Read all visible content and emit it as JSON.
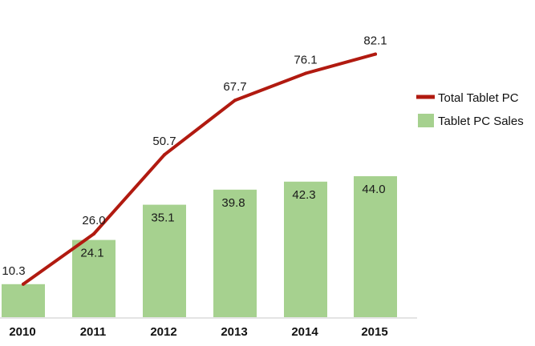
{
  "chart_data": {
    "type": "bar",
    "categories": [
      "2010",
      "2011",
      "2012",
      "2013",
      "2014",
      "2015"
    ],
    "series": [
      {
        "name": "Tablet PC Sales",
        "type": "bar",
        "values": [
          10.3,
          24.1,
          35.1,
          39.8,
          42.3,
          44.0
        ],
        "value_labels": [
          "",
          "24.1",
          "35.1",
          "39.8",
          "42.3",
          "44.0"
        ],
        "color": "#a6d18f"
      },
      {
        "name": "Total Tablet PC",
        "type": "line",
        "values": [
          10.3,
          26.0,
          50.7,
          67.7,
          76.1,
          82.1
        ],
        "value_labels": [
          "10.3",
          "26.0",
          "50.7",
          "67.7",
          "76.1",
          "82.1"
        ],
        "color": "#b11a10"
      }
    ],
    "ylim": [
      0,
      90
    ],
    "grid": false,
    "legend_position": "right"
  }
}
